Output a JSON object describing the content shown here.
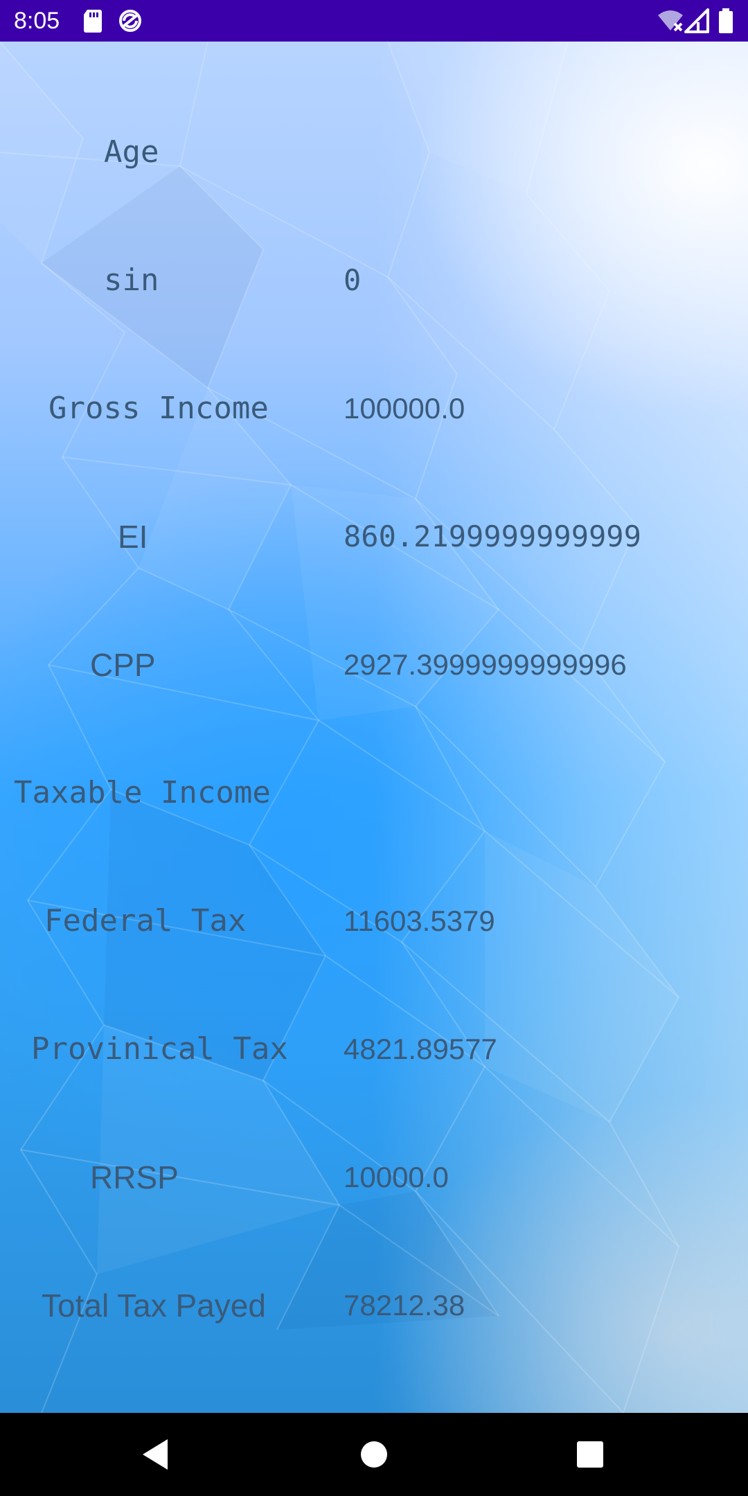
{
  "status_bar": {
    "time": "8:05",
    "icons": [
      "sd-card-icon",
      "sync-icon",
      "wifi-off-icon",
      "signal-icon",
      "battery-icon"
    ]
  },
  "fields": [
    {
      "label": "Age",
      "value": ""
    },
    {
      "label": "sin",
      "value": "0"
    },
    {
      "label": "Gross Income",
      "value": "100000.0"
    },
    {
      "label": "EI",
      "value": "860.2199999999999"
    },
    {
      "label": "CPP",
      "value": "2927.3999999999996"
    },
    {
      "label": "Taxable Income",
      "value": ""
    },
    {
      "label": "Federal Tax",
      "value": "11603.5379"
    },
    {
      "label": "Provinical Tax",
      "value": "4821.89577"
    },
    {
      "label": "RRSP",
      "value": "10000.0"
    },
    {
      "label": "Total Tax Payed",
      "value": "78212.38"
    }
  ],
  "navigation_bar": {
    "buttons": [
      "back-icon",
      "home-icon",
      "recents-icon"
    ]
  },
  "colors": {
    "status_bar": "#3c00aa",
    "text": "#3a5a7a",
    "nav_bar": "#000000"
  }
}
